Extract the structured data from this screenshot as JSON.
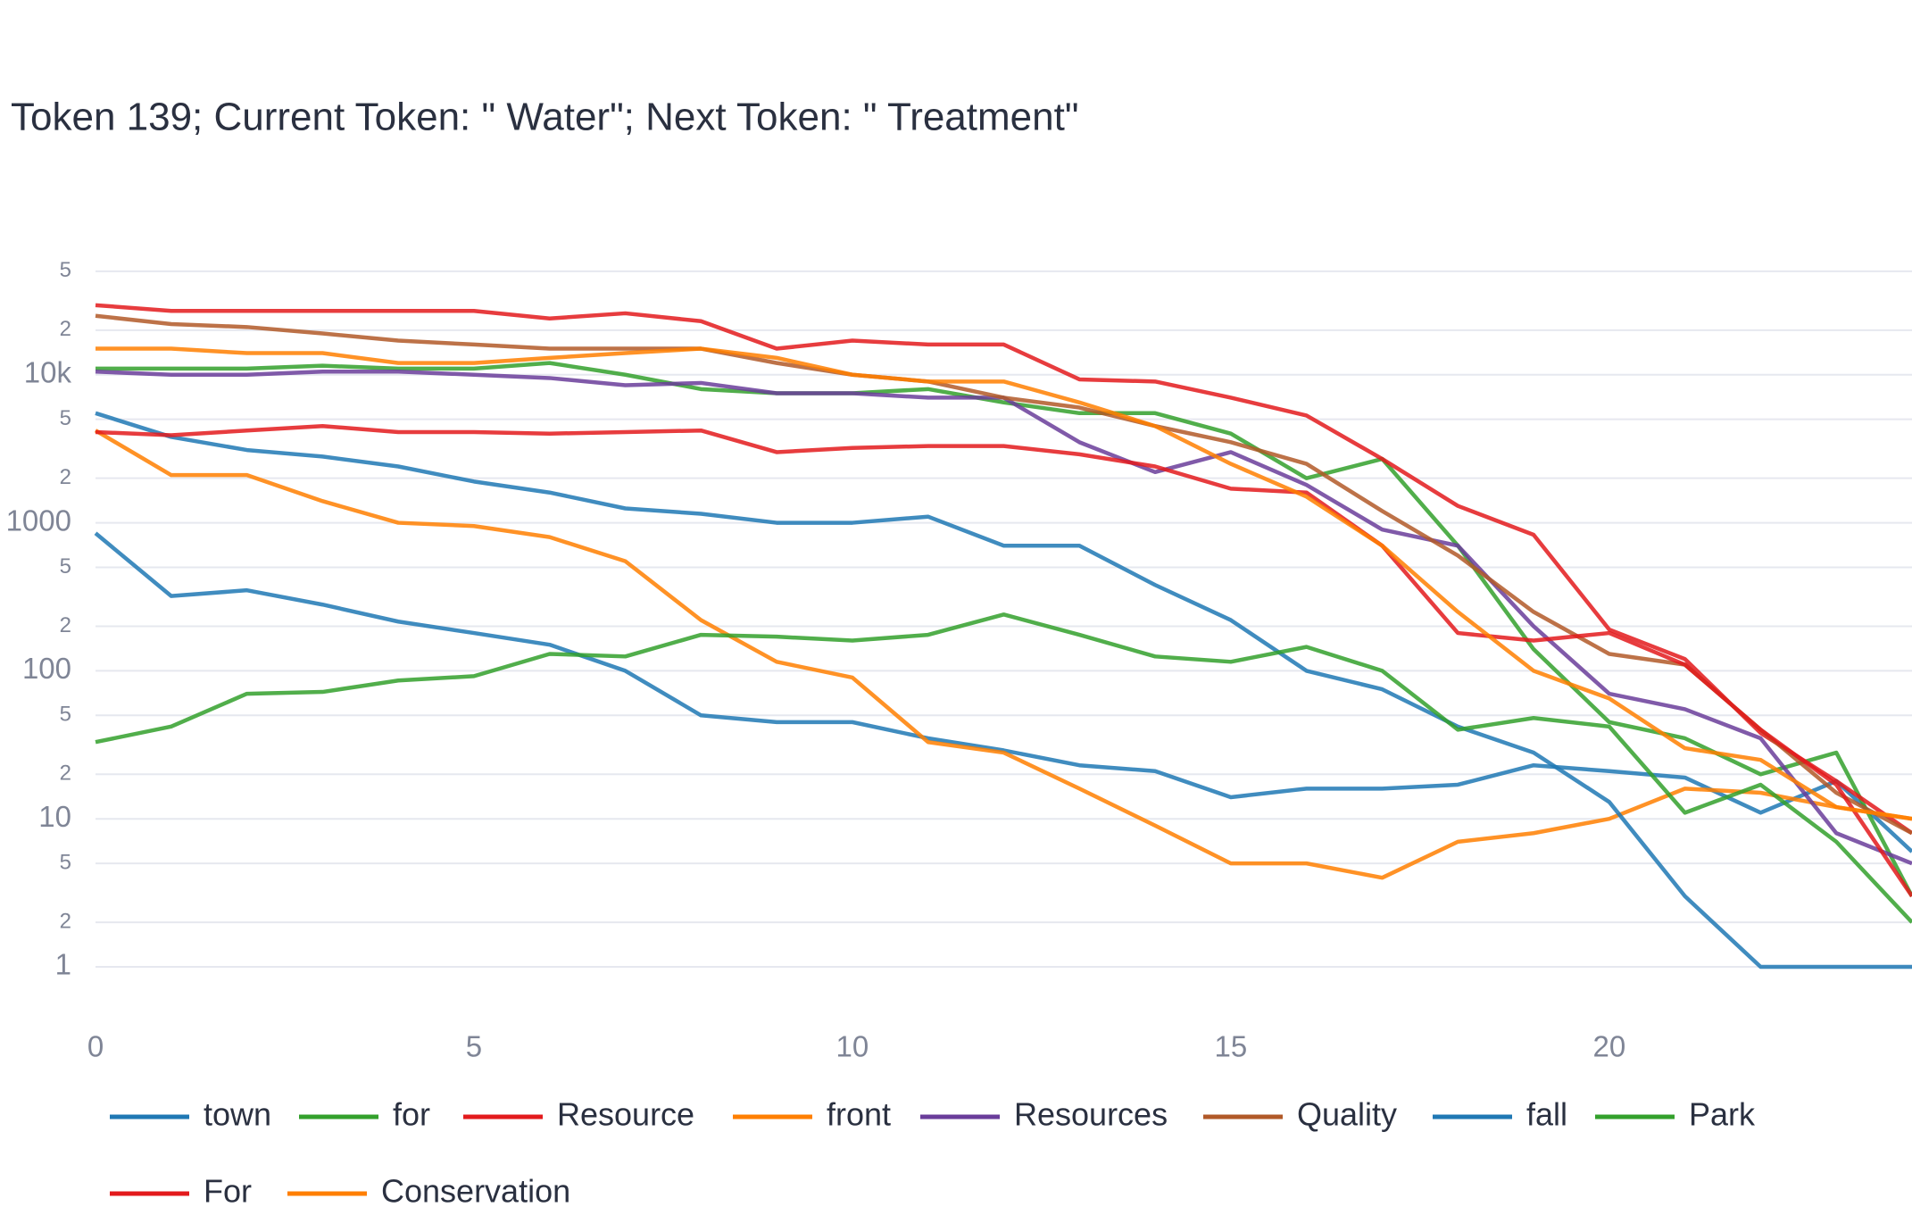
{
  "chart_data": {
    "type": "line",
    "title": "Token 139; Current Token: \" Water\"; Next Token: \" Treatment\"",
    "log_y": true,
    "grid": true,
    "x": [
      0,
      1,
      2,
      3,
      4,
      5,
      6,
      7,
      8,
      9,
      10,
      11,
      12,
      13,
      14,
      15,
      16,
      17,
      18,
      19,
      20,
      21,
      22,
      23,
      24
    ],
    "xlim": [
      0,
      24
    ],
    "xticks": [
      0,
      5,
      10,
      15,
      20
    ],
    "ylim": [
      0.4,
      80000
    ],
    "yticks": [
      1,
      2,
      5,
      10,
      {
        "value": 20,
        "label": "2"
      },
      {
        "value": 50,
        "label": "5"
      },
      100,
      {
        "value": 200,
        "label": "2"
      },
      {
        "value": 500,
        "label": "5"
      },
      1000,
      {
        "value": 2000,
        "label": "2"
      },
      {
        "value": 5000,
        "label": "5"
      },
      {
        "value": 10000,
        "label": "10k"
      },
      {
        "value": 20000,
        "label": "2"
      },
      {
        "value": 50000,
        "label": "5"
      }
    ],
    "series": [
      {
        "name": "town",
        "color": "#1f78b4",
        "values": [
          850,
          320,
          350,
          280,
          215,
          180,
          150,
          100,
          50,
          45,
          45,
          35,
          29,
          23,
          21,
          14,
          16,
          16,
          17,
          23,
          21,
          19,
          11,
          18,
          6
        ]
      },
      {
        "name": "for",
        "color": "#33a02c",
        "values": [
          11000,
          11000,
          11000,
          11500,
          11000,
          11000,
          12000,
          10000,
          8000,
          7500,
          7500,
          8000,
          6500,
          5500,
          5500,
          4000,
          2000,
          2700,
          700,
          140,
          45,
          35,
          20,
          28,
          3
        ]
      },
      {
        "name": "Resource",
        "color": "#e31a1c",
        "values": [
          29500,
          27000,
          27000,
          27000,
          27000,
          27000,
          24000,
          26000,
          23000,
          15000,
          17000,
          16000,
          16000,
          9300,
          9000,
          7000,
          5300,
          2700,
          1300,
          830,
          190,
          120,
          38,
          18,
          8
        ]
      },
      {
        "name": "front",
        "color": "#ff7f00",
        "values": [
          4200,
          2100,
          2100,
          1400,
          1000,
          950,
          800,
          550,
          220,
          115,
          90,
          33,
          28,
          16,
          9,
          5,
          5,
          4,
          7,
          8,
          10,
          16,
          15,
          12,
          10
        ]
      },
      {
        "name": "Resources",
        "color": "#6a3d9a",
        "values": [
          10500,
          10000,
          10000,
          10500,
          10500,
          10000,
          9500,
          8500,
          8800,
          7500,
          7500,
          7000,
          7000,
          3500,
          2200,
          3000,
          1800,
          900,
          700,
          200,
          70,
          55,
          35,
          8,
          5
        ]
      },
      {
        "name": "Quality",
        "color": "#b15928",
        "values": [
          25000,
          22000,
          21000,
          19000,
          17000,
          16000,
          15000,
          15000,
          15000,
          12000,
          10000,
          9000,
          7000,
          6000,
          4500,
          3500,
          2500,
          1200,
          600,
          250,
          130,
          110,
          40,
          15,
          8
        ]
      },
      {
        "name": "fall",
        "color": "#1f78b4",
        "values": [
          5500,
          3800,
          3100,
          2800,
          2400,
          1900,
          1600,
          1250,
          1150,
          1000,
          1000,
          1100,
          700,
          700,
          380,
          220,
          100,
          75,
          42,
          28,
          13,
          3,
          1,
          1,
          1
        ]
      },
      {
        "name": "Park",
        "color": "#33a02c",
        "values": [
          33,
          42,
          70,
          72,
          86,
          92,
          130,
          125,
          175,
          170,
          160,
          175,
          240,
          175,
          125,
          115,
          145,
          100,
          40,
          48,
          42,
          11,
          17,
          7,
          2
        ]
      },
      {
        "name": "For",
        "color": "#e31a1c",
        "values": [
          4100,
          3900,
          4200,
          4500,
          4100,
          4100,
          4000,
          4100,
          4200,
          3000,
          3200,
          3300,
          3300,
          2900,
          2400,
          1700,
          1600,
          700,
          180,
          160,
          180,
          110,
          40,
          17,
          3
        ]
      },
      {
        "name": "Conservation",
        "color": "#ff7f00",
        "values": [
          15000,
          15000,
          14000,
          14000,
          12000,
          12000,
          13000,
          14000,
          15000,
          13000,
          10000,
          9000,
          9000,
          6500,
          4500,
          2500,
          1500,
          700,
          250,
          100,
          65,
          30,
          25,
          12,
          10
        ]
      }
    ]
  }
}
